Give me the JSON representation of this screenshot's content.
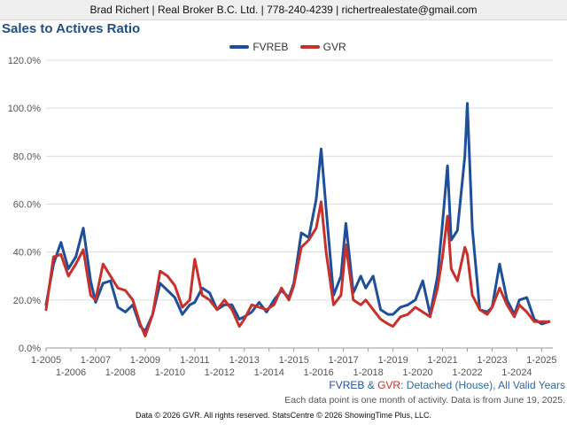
{
  "header": {
    "contact": "Brad Richert | Real Broker B.C. Ltd. | 778-240-4239 | richertrealestate@gmail.com"
  },
  "chart_data": {
    "type": "line",
    "title": "Sales to Actives Ratio",
    "xlabel": "",
    "ylabel": "",
    "ylim": [
      0,
      120
    ],
    "y_ticks": [
      "0.0%",
      "20.0%",
      "40.0%",
      "60.0%",
      "80.0%",
      "100.0%",
      "120.0%"
    ],
    "x_tick_labels": [
      "1-2005",
      "1-2006",
      "1-2007",
      "1-2008",
      "1-2009",
      "1-2010",
      "1-2011",
      "1-2012",
      "1-2013",
      "1-2014",
      "1-2015",
      "1-2016",
      "1-2017",
      "1-2018",
      "1-2019",
      "1-2020",
      "1-2021",
      "1-2022",
      "1-2023",
      "1-2024",
      "1-2025"
    ],
    "grid": "horizontal",
    "legend": "top-center",
    "series": [
      {
        "name": "FVREB",
        "color": "#1d4f9a",
        "points": [
          [
            2005.0,
            18
          ],
          [
            2005.3,
            35
          ],
          [
            2005.6,
            44
          ],
          [
            2005.9,
            33
          ],
          [
            2006.2,
            38
          ],
          [
            2006.5,
            50
          ],
          [
            2006.8,
            28
          ],
          [
            2007.0,
            19
          ],
          [
            2007.3,
            27
          ],
          [
            2007.6,
            28
          ],
          [
            2007.9,
            17
          ],
          [
            2008.2,
            15
          ],
          [
            2008.5,
            18
          ],
          [
            2008.8,
            9
          ],
          [
            2009.0,
            7
          ],
          [
            2009.3,
            14
          ],
          [
            2009.6,
            27
          ],
          [
            2009.9,
            24
          ],
          [
            2010.2,
            21
          ],
          [
            2010.5,
            14
          ],
          [
            2010.8,
            18
          ],
          [
            2011.0,
            19
          ],
          [
            2011.3,
            25
          ],
          [
            2011.6,
            23
          ],
          [
            2011.9,
            16
          ],
          [
            2012.2,
            18
          ],
          [
            2012.5,
            18
          ],
          [
            2012.8,
            12
          ],
          [
            2013.0,
            13
          ],
          [
            2013.3,
            15
          ],
          [
            2013.6,
            19
          ],
          [
            2013.9,
            15
          ],
          [
            2014.2,
            20
          ],
          [
            2014.5,
            24
          ],
          [
            2014.8,
            21
          ],
          [
            2015.0,
            27
          ],
          [
            2015.3,
            48
          ],
          [
            2015.6,
            46
          ],
          [
            2015.9,
            62
          ],
          [
            2016.1,
            83
          ],
          [
            2016.3,
            58
          ],
          [
            2016.6,
            22
          ],
          [
            2016.9,
            30
          ],
          [
            2017.1,
            52
          ],
          [
            2017.4,
            23
          ],
          [
            2017.7,
            30
          ],
          [
            2017.9,
            25
          ],
          [
            2018.2,
            30
          ],
          [
            2018.5,
            16
          ],
          [
            2018.8,
            14
          ],
          [
            2019.0,
            14
          ],
          [
            2019.3,
            17
          ],
          [
            2019.6,
            18
          ],
          [
            2019.9,
            20
          ],
          [
            2020.2,
            28
          ],
          [
            2020.5,
            14
          ],
          [
            2020.8,
            30
          ],
          [
            2021.0,
            52
          ],
          [
            2021.2,
            76
          ],
          [
            2021.35,
            45
          ],
          [
            2021.6,
            49
          ],
          [
            2021.9,
            80
          ],
          [
            2022.0,
            102
          ],
          [
            2022.2,
            50
          ],
          [
            2022.5,
            16
          ],
          [
            2022.8,
            15
          ],
          [
            2023.0,
            17
          ],
          [
            2023.3,
            35
          ],
          [
            2023.6,
            20
          ],
          [
            2023.9,
            14
          ],
          [
            2024.1,
            20
          ],
          [
            2024.4,
            21
          ],
          [
            2024.7,
            12
          ],
          [
            2025.0,
            10
          ],
          [
            2025.3,
            11
          ]
        ]
      },
      {
        "name": "GVR",
        "color": "#c8302c",
        "points": [
          [
            2005.0,
            16
          ],
          [
            2005.3,
            38
          ],
          [
            2005.6,
            39
          ],
          [
            2005.9,
            30
          ],
          [
            2006.2,
            35
          ],
          [
            2006.5,
            41
          ],
          [
            2006.8,
            22
          ],
          [
            2007.0,
            20
          ],
          [
            2007.3,
            35
          ],
          [
            2007.6,
            30
          ],
          [
            2007.9,
            25
          ],
          [
            2008.2,
            24
          ],
          [
            2008.5,
            20
          ],
          [
            2008.8,
            10
          ],
          [
            2009.0,
            5
          ],
          [
            2009.3,
            14
          ],
          [
            2009.6,
            32
          ],
          [
            2009.9,
            30
          ],
          [
            2010.2,
            26
          ],
          [
            2010.5,
            17
          ],
          [
            2010.8,
            20
          ],
          [
            2011.0,
            37
          ],
          [
            2011.3,
            22
          ],
          [
            2011.6,
            20
          ],
          [
            2011.9,
            16
          ],
          [
            2012.2,
            20
          ],
          [
            2012.5,
            16
          ],
          [
            2012.8,
            9
          ],
          [
            2013.0,
            12
          ],
          [
            2013.3,
            18
          ],
          [
            2013.6,
            17
          ],
          [
            2013.9,
            16
          ],
          [
            2014.2,
            18
          ],
          [
            2014.5,
            25
          ],
          [
            2014.8,
            20
          ],
          [
            2015.0,
            26
          ],
          [
            2015.3,
            42
          ],
          [
            2015.6,
            45
          ],
          [
            2015.9,
            50
          ],
          [
            2016.1,
            61
          ],
          [
            2016.3,
            40
          ],
          [
            2016.6,
            18
          ],
          [
            2016.9,
            22
          ],
          [
            2017.1,
            43
          ],
          [
            2017.4,
            20
          ],
          [
            2017.7,
            18
          ],
          [
            2017.9,
            20
          ],
          [
            2018.2,
            16
          ],
          [
            2018.5,
            12
          ],
          [
            2018.8,
            10
          ],
          [
            2019.0,
            9
          ],
          [
            2019.3,
            13
          ],
          [
            2019.6,
            14
          ],
          [
            2019.9,
            17
          ],
          [
            2020.2,
            15
          ],
          [
            2020.5,
            13
          ],
          [
            2020.8,
            25
          ],
          [
            2021.0,
            38
          ],
          [
            2021.2,
            55
          ],
          [
            2021.35,
            33
          ],
          [
            2021.6,
            28
          ],
          [
            2021.9,
            42
          ],
          [
            2022.0,
            39
          ],
          [
            2022.2,
            22
          ],
          [
            2022.5,
            16
          ],
          [
            2022.8,
            14
          ],
          [
            2023.0,
            17
          ],
          [
            2023.3,
            25
          ],
          [
            2023.6,
            18
          ],
          [
            2023.9,
            13
          ],
          [
            2024.1,
            18
          ],
          [
            2024.4,
            15
          ],
          [
            2024.7,
            11
          ],
          [
            2025.0,
            11
          ],
          [
            2025.3,
            11
          ]
        ]
      }
    ],
    "subtitle": {
      "fvreb": "FVREB",
      "amp": " & ",
      "gvr": "GVR",
      "rest": ": Detached (House), All Valid Years"
    },
    "note": "Each data point is one month of activity. Data is from June 19, 2025."
  },
  "footer": "Data © 2026 GVR. All rights reserved. StatsCentre © 2026 ShowingTime Plus, LLC."
}
